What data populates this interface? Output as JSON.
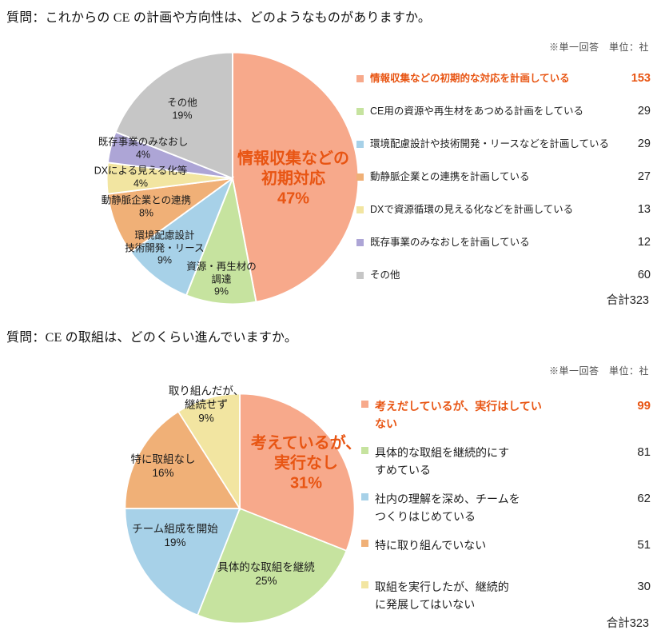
{
  "chart_data": [
    {
      "type": "pie",
      "question": "質問：これからの CE の計画や方向性は、どのようなものがありますか。",
      "note": "※単一回答　単位：社",
      "total": 323,
      "total_label": "合計323",
      "legend_position": "right",
      "slices": [
        {
          "legend_label": "情報収集などの初期的な対応を計画している",
          "count": 153,
          "pct": 47,
          "color": "#F7A98B",
          "pie_label": "情報収集などの\n初期対応\n47%",
          "emphasis": true
        },
        {
          "legend_label": "CE用の資源や再生材をあつめる計画をしている",
          "count": 29,
          "pct": 9,
          "color": "#C6E39F",
          "pie_label": "資源・再生材の\n調達\n9%",
          "emphasis": false
        },
        {
          "legend_label": "環境配慮設計や技術開発・リースなどを計画している",
          "count": 29,
          "pct": 9,
          "color": "#A7D1E8",
          "pie_label": "環境配慮設計\n技術開発・リース\n9%",
          "emphasis": false
        },
        {
          "legend_label": "動静脈企業との連携を計画している",
          "count": 27,
          "pct": 8,
          "color": "#F0B077",
          "pie_label": "動静脈企業との連携\n8%",
          "emphasis": false
        },
        {
          "legend_label": "DXで資源循環の見える化などを計画している",
          "count": 13,
          "pct": 4,
          "color": "#F2E5A1",
          "pie_label": "DXによる見える化等\n4%",
          "emphasis": false
        },
        {
          "legend_label": "既存事業のみなおしを計画している",
          "count": 12,
          "pct": 4,
          "color": "#ADA5D6",
          "pie_label": "既存事業のみなおし\n4%",
          "emphasis": false
        },
        {
          "legend_label": "その他",
          "count": 60,
          "pct": 19,
          "color": "#C6C6C6",
          "pie_label": "その他\n19%",
          "emphasis": false
        }
      ]
    },
    {
      "type": "pie",
      "question": "質問：CE の取組は、どのくらい進んでいますか。",
      "note": "※単一回答　単位：社",
      "total": 323,
      "total_label": "合計323",
      "legend_position": "right",
      "slices": [
        {
          "legend_label": "考えだしているが、実行はしてい\nない",
          "count": 99,
          "pct": 31,
          "color": "#F7A98B",
          "pie_label": "考えているが、\n実行なし\n31%",
          "emphasis": true
        },
        {
          "legend_label": "具体的な取組を継続的にす\nすめている",
          "count": 81,
          "pct": 25,
          "color": "#C6E39F",
          "pie_label": "具体的な取組を継続\n25%",
          "emphasis": false
        },
        {
          "legend_label": "社内の理解を深め、チームを\nつくりはじめている",
          "count": 62,
          "pct": 19,
          "color": "#A7D1E8",
          "pie_label": "チーム組成を開始\n19%",
          "emphasis": false
        },
        {
          "legend_label": "特に取り組んでいない",
          "count": 51,
          "pct": 16,
          "color": "#F0B077",
          "pie_label": "特に取組なし\n16%",
          "emphasis": false
        },
        {
          "legend_label": "取組を実行したが、継続的\nに発展してはいない",
          "count": 30,
          "pct": 9,
          "color": "#F2E5A1",
          "pie_label": "取り組んだが、\n継続せず\n9%",
          "emphasis": false
        }
      ]
    }
  ]
}
